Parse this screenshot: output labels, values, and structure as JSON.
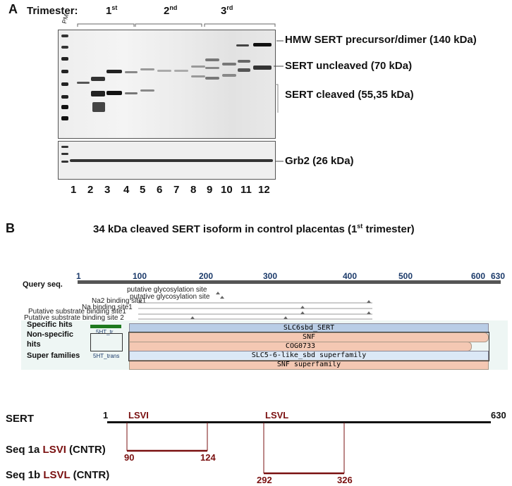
{
  "panel_a": {
    "letter": "A",
    "trimester_label": "Trimester:",
    "trimesters": [
      {
        "base": "1",
        "sup": "st"
      },
      {
        "base": "2",
        "sup": "nd"
      },
      {
        "base": "3",
        "sup": "rd"
      }
    ],
    "pm": "PM",
    "annotations": [
      "HMW SERT precursor/dimer (140 kDa)",
      "SERT uncleaved (70 kDa)",
      "SERT cleaved (55,35 kDa)"
    ],
    "control_label": "Grb2 (26 kDa)",
    "lanes": [
      "1",
      "2",
      "3",
      "4",
      "5",
      "6",
      "7",
      "8",
      "9",
      "10",
      "11",
      "12"
    ]
  },
  "panel_b": {
    "letter": "B",
    "title_main": "34 kDa cleaved SERT isoform in control placentas (1",
    "title_sup": "st",
    "title_end": " trimester)",
    "ruler_ticks": [
      "1",
      "100",
      "200",
      "300",
      "400",
      "500",
      "600",
      "630"
    ],
    "query_label": "Query seq.",
    "site_labels": [
      "putative glycosylation site",
      "putative glycosylation site",
      "Na2 binding site1",
      "Na binding site1",
      "Putative substrate binding site1",
      "Putative substrate binding site 2"
    ],
    "row_labels": [
      "Specific hits",
      "Non-specific",
      "hits",
      "Super families"
    ],
    "domains": [
      "SLC6sbd_SERT",
      "SNF",
      "COG0733",
      "SLC5-6-like_sbd superfamily",
      "SNF superfamily"
    ],
    "small_domains": [
      "5HT_tr",
      "5HT_trans"
    ],
    "sert": {
      "label": "SERT",
      "start": "1",
      "end": "630",
      "motif1": "LSVI",
      "motif2": "LSVL"
    },
    "seqs": [
      {
        "label": "Seq 1a ",
        "motif": "LSVI",
        "suffix": " (CNTR)",
        "start": "90",
        "end": "124"
      },
      {
        "label": "Seq 1b ",
        "motif": "LSVL",
        "suffix": " (CNTR)",
        "start": "292",
        "end": "326"
      }
    ]
  }
}
